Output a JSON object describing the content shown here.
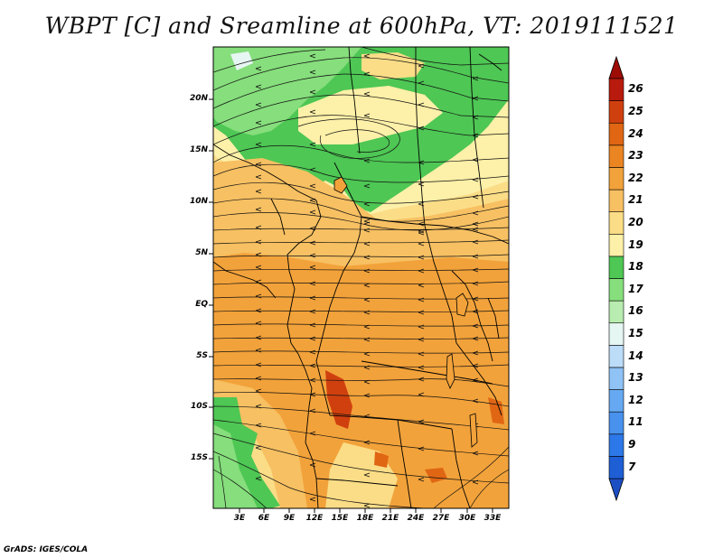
{
  "title": "WBPT [C] and Sreamline at 600hPa, VT: 2019111521",
  "credit": "GrADS: IGES/COLA",
  "lat_labels": [
    "20N",
    "15N",
    "10N",
    "5N",
    "EQ",
    "5S",
    "10S",
    "15S"
  ],
  "lon_labels": [
    "3E",
    "6E",
    "9E",
    "12E",
    "15E",
    "18E",
    "21E",
    "24E",
    "27E",
    "30E",
    "33E"
  ],
  "colorbar": {
    "labels": [
      "7",
      "9",
      "11",
      "12",
      "13",
      "14",
      "15",
      "16",
      "17",
      "18",
      "19",
      "20",
      "21",
      "22",
      "23",
      "24",
      "25",
      "26"
    ],
    "colors": [
      "#1f5fd6",
      "#2d78e8",
      "#4892ee",
      "#66a9f2",
      "#8fc2f5",
      "#bcdcf8",
      "#e6f6f2",
      "#b8ecb0",
      "#86de7c",
      "#4ec754",
      "#fdf0a8",
      "#fbdd87",
      "#f7c062",
      "#f2a23a",
      "#ea8522",
      "#e06614",
      "#d0400f",
      "#b81a0d"
    ],
    "lower_arrow_color": "#1d4fc4",
    "upper_arrow_color": "#9e0c06"
  },
  "map_colors": {
    "warm_orange": "#f2a23a",
    "light_orange": "#f7c062",
    "pale_yellow": "#fbdd87",
    "cream": "#fdf0a8",
    "green": "#4ec754",
    "light_green": "#86de7c",
    "red": "#d0400f"
  }
}
